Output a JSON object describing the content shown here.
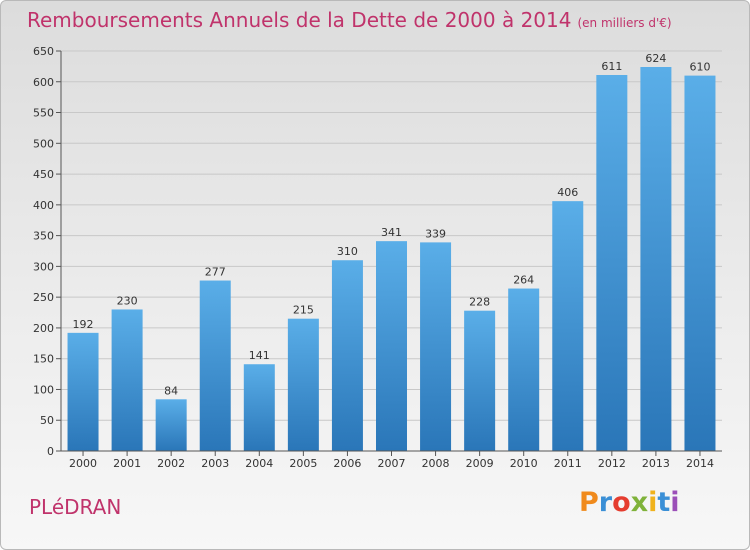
{
  "header": {
    "title": "Remboursements Annuels de la Dette de 2000 à 2014",
    "unit": "(en milliers d'€)"
  },
  "footer": {
    "city": "PLéDRAN",
    "brand": "Proxiti",
    "brand_colors": [
      "#f08a1c",
      "#3a8fd6",
      "#e53d2f",
      "#7fb23a",
      "#f0b21c",
      "#3a8fd6",
      "#9b4fb8"
    ]
  },
  "chart_data": {
    "type": "bar",
    "title": "Remboursements Annuels de la Dette de 2000 à 2014",
    "xlabel": "",
    "ylabel": "",
    "categories": [
      "2000",
      "2001",
      "2002",
      "2003",
      "2004",
      "2005",
      "2006",
      "2007",
      "2008",
      "2009",
      "2010",
      "2011",
      "2012",
      "2013",
      "2014"
    ],
    "values": [
      192,
      230,
      84,
      277,
      141,
      215,
      310,
      341,
      339,
      228,
      264,
      406,
      611,
      624,
      610
    ],
    "ylim": [
      0,
      650
    ],
    "yticks": [
      0,
      50,
      100,
      150,
      200,
      250,
      300,
      350,
      400,
      450,
      500,
      550,
      600,
      650
    ],
    "grid": true,
    "bar_color": "#3d8fd1"
  }
}
